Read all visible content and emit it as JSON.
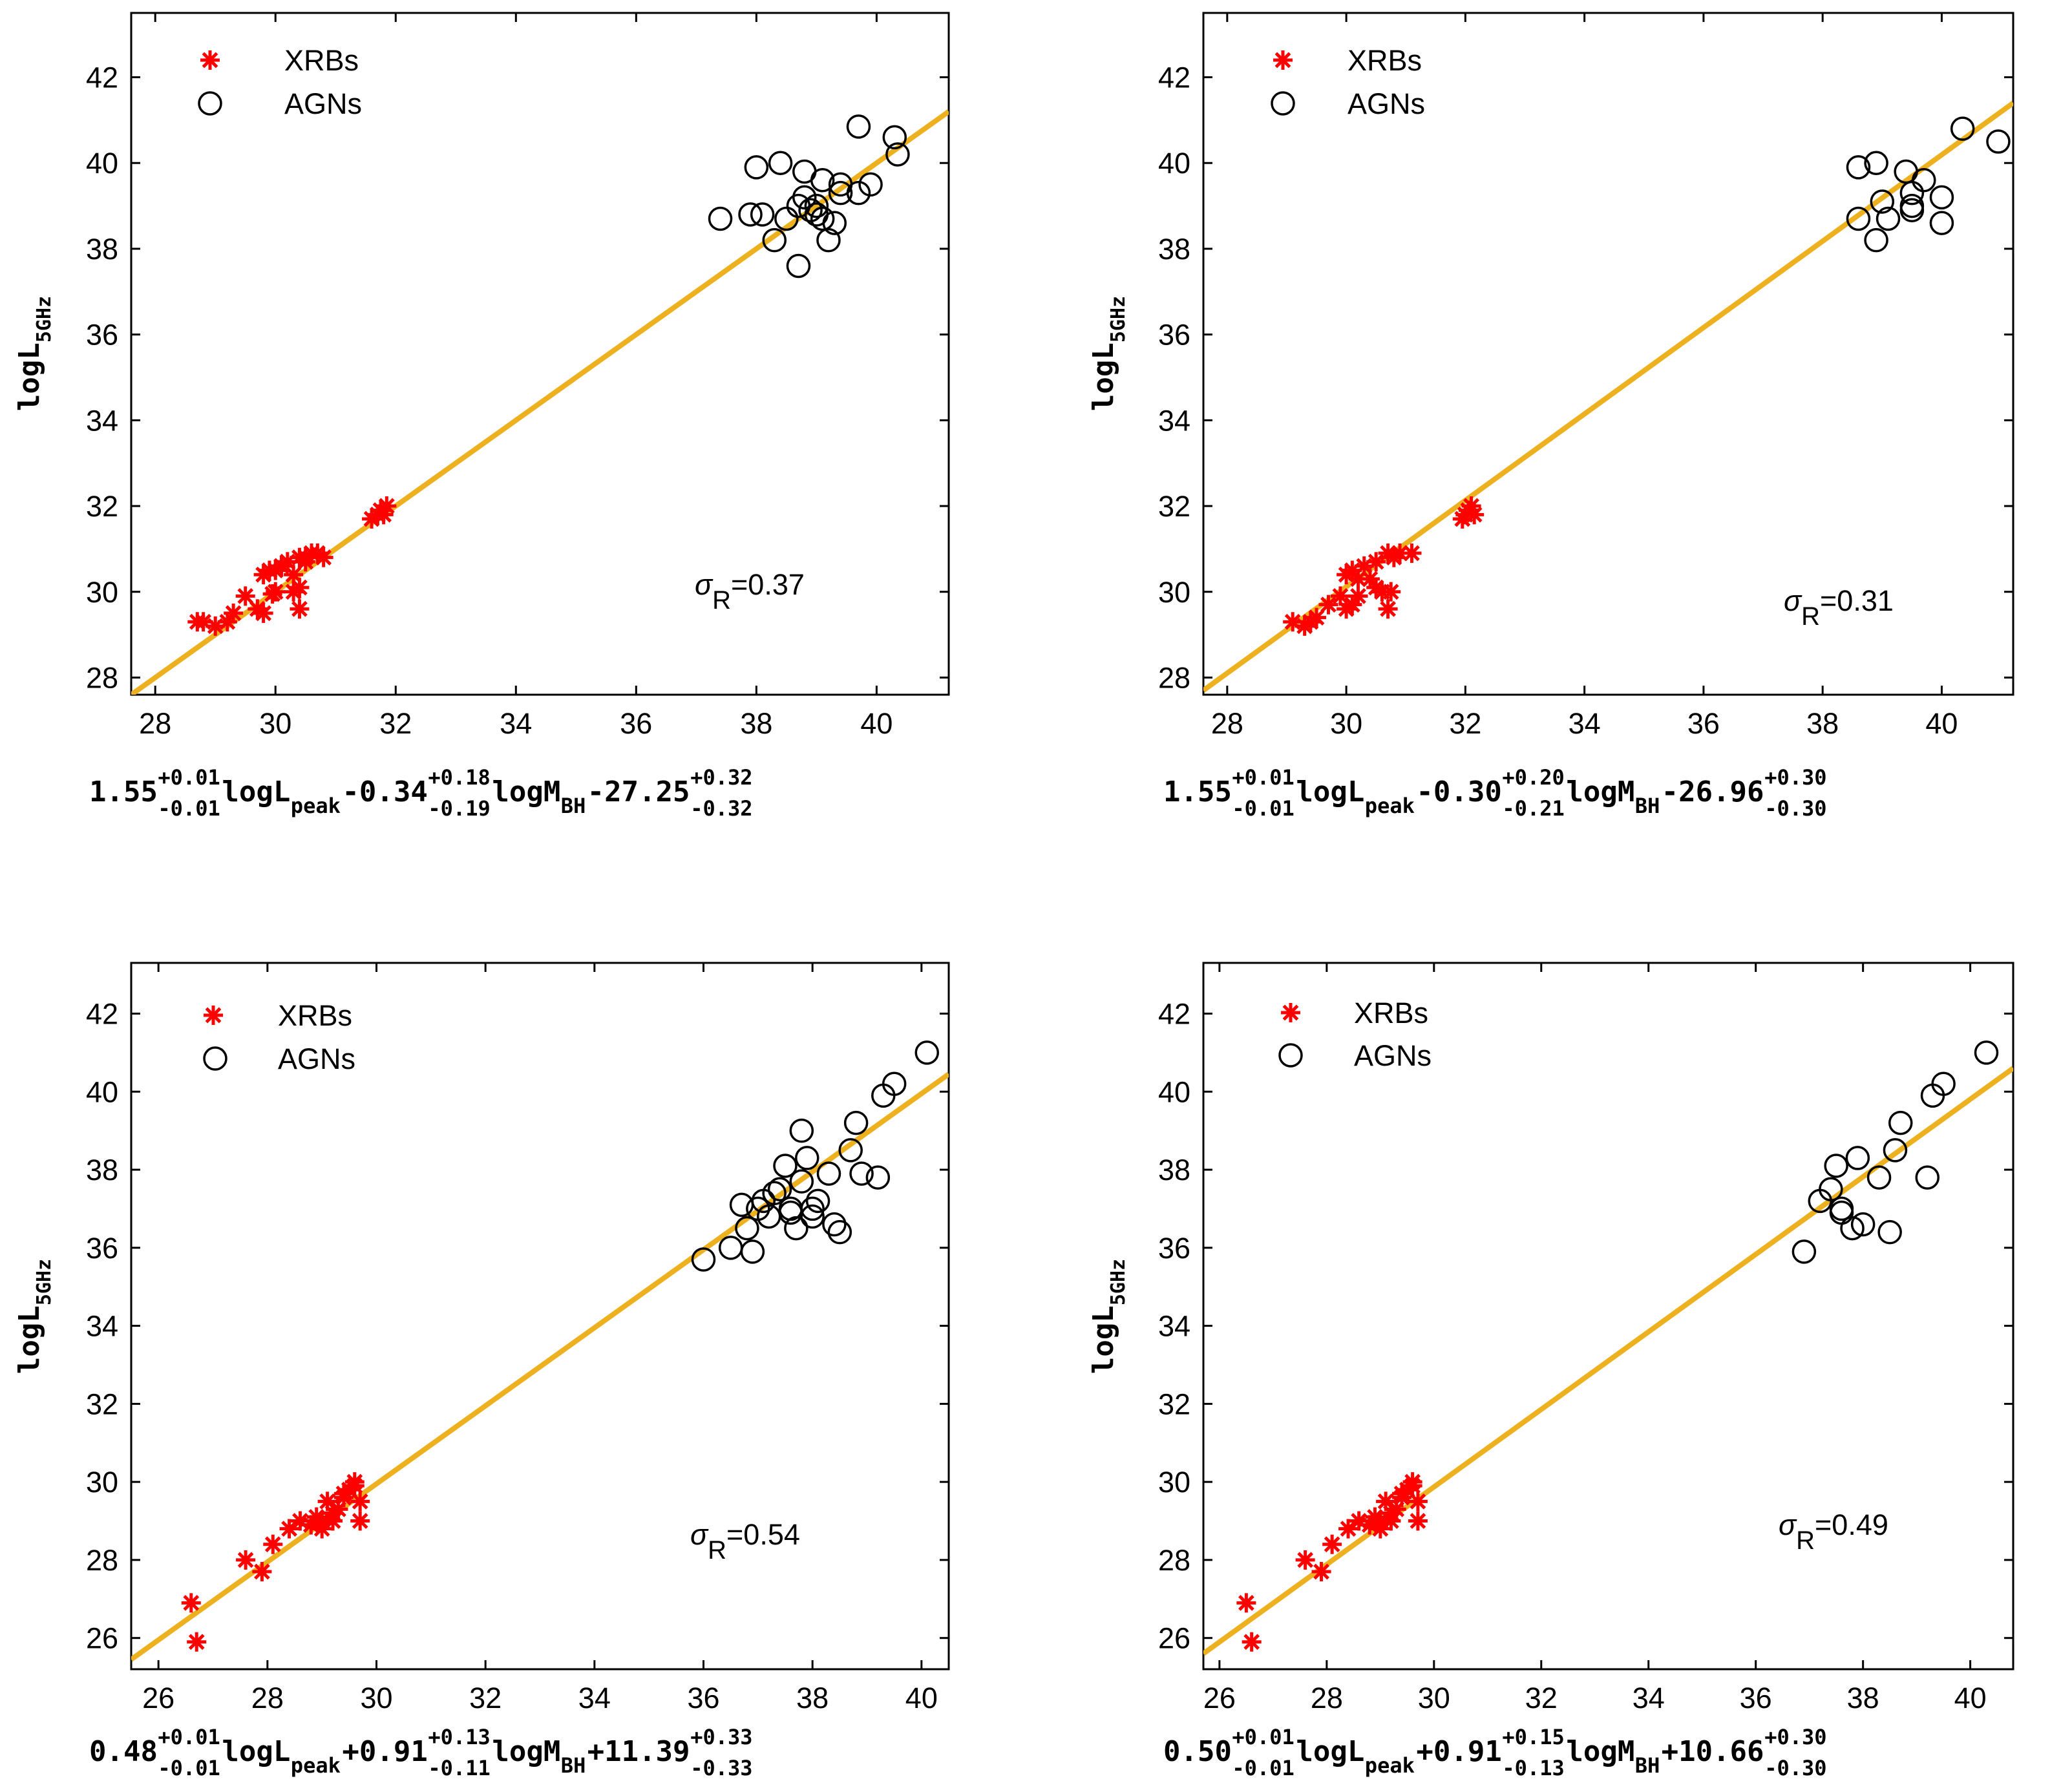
{
  "figure": {
    "panels": [
      {
        "legend": {
          "xrb": "XRBs",
          "agn": "AGNs"
        },
        "ylabel": {
          "main": "logL",
          "sub": "5GHz"
        },
        "sigma": {
          "symbol": "σ",
          "sub": "R",
          "value": "=0.37"
        },
        "xlabel": {
          "a": "1.55",
          "a_sup": "+0.01",
          "a_sub": "-0.01",
          "t1": "logL",
          "t1_sub": "peak",
          "b": "-0.34",
          "b_sup": "+0.18",
          "b_sub": "-0.19",
          "t2": "logM",
          "t2_sub": "BH",
          "c": "-27.25",
          "c_sup": "+0.32",
          "c_sub": "-0.32"
        }
      },
      {
        "legend": {
          "xrb": "XRBs",
          "agn": "AGNs"
        },
        "ylabel": {
          "main": "logL",
          "sub": "5GHz"
        },
        "sigma": {
          "symbol": "σ",
          "sub": "R",
          "value": "=0.31"
        },
        "xlabel": {
          "a": "1.55",
          "a_sup": "+0.01",
          "a_sub": "-0.01",
          "t1": "logL",
          "t1_sub": "peak",
          "b": "-0.30",
          "b_sup": "+0.20",
          "b_sub": "-0.21",
          "t2": "logM",
          "t2_sub": "BH",
          "c": "-26.96",
          "c_sup": "+0.30",
          "c_sub": "-0.30"
        }
      },
      {
        "legend": {
          "xrb": "XRBs",
          "agn": "AGNs"
        },
        "ylabel": {
          "main": "logL",
          "sub": "5GHz"
        },
        "sigma": {
          "symbol": "σ",
          "sub": "R",
          "value": "=0.54"
        },
        "xlabel": {
          "a": "0.48",
          "a_sup": "+0.01",
          "a_sub": "-0.01",
          "t1": "logL",
          "t1_sub": "peak",
          "b": "+0.91",
          "b_sup": "+0.13",
          "b_sub": "-0.11",
          "t2": "logM",
          "t2_sub": "BH",
          "c": "+11.39",
          "c_sup": "+0.33",
          "c_sub": "-0.33"
        }
      },
      {
        "legend": {
          "xrb": "XRBs",
          "agn": "AGNs"
        },
        "ylabel": {
          "main": "logL",
          "sub": "5GHz"
        },
        "sigma": {
          "symbol": "σ",
          "sub": "R",
          "value": "=0.49"
        },
        "xlabel": {
          "a": "0.50",
          "a_sup": "+0.01",
          "a_sub": "-0.01",
          "t1": "logL",
          "t1_sub": "peak",
          "b": "+0.91",
          "b_sup": "+0.15",
          "b_sub": "-0.13",
          "t2": "logM",
          "t2_sub": "BH",
          "c": "+10.66",
          "c_sup": "+0.30",
          "c_sub": "-0.30"
        }
      }
    ]
  },
  "colors": {
    "xrb": "#ff0000",
    "agn": "#000000",
    "fit": "#edb120",
    "axis": "#000000"
  },
  "chart_data": [
    {
      "type": "scatter",
      "xlim": [
        27.6,
        41.2
      ],
      "ylim": [
        27.6,
        43.5
      ],
      "xticks": [
        28,
        30,
        32,
        34,
        36,
        38,
        40
      ],
      "yticks": [
        28,
        30,
        32,
        34,
        36,
        38,
        40,
        42
      ],
      "fit_line": [
        [
          27.6,
          27.6
        ],
        [
          41.2,
          41.2
        ]
      ],
      "series": [
        {
          "name": "XRBs",
          "marker": "asterisk",
          "x": [
            28.7,
            28.8,
            29.0,
            29.2,
            29.3,
            29.5,
            29.7,
            29.8,
            29.8,
            29.9,
            30.0,
            30.1,
            30.2,
            30.3,
            30.4,
            30.4,
            30.5,
            30.5,
            30.6,
            30.7,
            30.8,
            31.6,
            31.7,
            31.75,
            31.8,
            31.85,
            30.0,
            30.1,
            30.3,
            30.4,
            29.95
          ],
          "y": [
            29.3,
            29.3,
            29.2,
            29.3,
            29.5,
            29.9,
            29.6,
            30.4,
            29.5,
            30.5,
            30.0,
            30.6,
            30.7,
            30.0,
            29.6,
            30.1,
            30.8,
            30.7,
            30.9,
            30.9,
            30.8,
            31.7,
            31.8,
            31.9,
            31.8,
            32.0,
            30.5,
            30.6,
            30.4,
            30.8,
            29.95
          ]
        },
        {
          "name": "AGNs",
          "marker": "circle",
          "x": [
            37.4,
            37.9,
            38.0,
            38.1,
            38.3,
            38.4,
            38.5,
            38.7,
            38.7,
            38.8,
            38.8,
            38.9,
            39.0,
            39.0,
            39.1,
            39.1,
            39.2,
            39.3,
            39.4,
            39.4,
            39.7,
            39.7,
            39.9,
            40.3,
            40.35
          ],
          "y": [
            38.7,
            38.8,
            39.9,
            38.8,
            38.2,
            40.0,
            38.7,
            39.0,
            37.6,
            39.8,
            39.2,
            38.9,
            38.8,
            39.0,
            39.6,
            38.7,
            38.2,
            38.6,
            39.3,
            39.5,
            40.85,
            39.3,
            39.5,
            40.6,
            40.2
          ]
        }
      ]
    },
    {
      "type": "scatter",
      "xlim": [
        27.6,
        41.2
      ],
      "ylim": [
        27.6,
        43.5
      ],
      "xticks": [
        28,
        30,
        32,
        34,
        36,
        38,
        40
      ],
      "yticks": [
        28,
        30,
        32,
        34,
        36,
        38,
        40,
        42
      ],
      "fit_line": [
        [
          27.6,
          27.7
        ],
        [
          41.2,
          41.4
        ]
      ],
      "series": [
        {
          "name": "XRBs",
          "marker": "asterisk",
          "x": [
            29.1,
            29.3,
            29.4,
            29.5,
            29.7,
            29.9,
            30.0,
            30.1,
            30.2,
            30.3,
            30.4,
            30.5,
            30.6,
            30.7,
            30.8,
            30.9,
            31.1,
            31.95,
            32.0,
            32.05,
            32.1,
            32.15,
            30.0,
            30.2,
            30.5,
            30.7,
            30.75,
            30.1
          ],
          "y": [
            29.3,
            29.2,
            29.3,
            29.4,
            29.7,
            29.9,
            30.4,
            30.5,
            29.9,
            30.6,
            30.3,
            30.7,
            30.0,
            30.9,
            30.8,
            30.9,
            30.9,
            31.7,
            31.8,
            31.9,
            32.0,
            31.8,
            29.6,
            30.3,
            30.1,
            29.6,
            30.0,
            29.7
          ]
        },
        {
          "name": "AGNs",
          "marker": "circle",
          "x": [
            38.6,
            38.6,
            38.9,
            38.9,
            39.0,
            39.1,
            39.4,
            39.5,
            39.5,
            39.5,
            39.7,
            40.0,
            40.0,
            40.35,
            40.95
          ],
          "y": [
            39.9,
            38.7,
            38.2,
            40.0,
            39.1,
            38.7,
            39.8,
            39.0,
            38.9,
            39.3,
            39.6,
            39.2,
            38.6,
            40.8,
            40.5
          ]
        }
      ]
    },
    {
      "type": "scatter",
      "xlim": [
        25.5,
        40.5
      ],
      "ylim": [
        25.2,
        43.3
      ],
      "xticks": [
        26,
        28,
        30,
        32,
        34,
        36,
        38,
        40
      ],
      "yticks": [
        26,
        28,
        30,
        32,
        34,
        36,
        38,
        40,
        42
      ],
      "fit_line": [
        [
          25.5,
          25.45
        ],
        [
          40.5,
          40.45
        ]
      ],
      "series": [
        {
          "name": "XRBs",
          "marker": "asterisk",
          "x": [
            26.6,
            26.7,
            27.6,
            27.9,
            28.1,
            28.4,
            28.6,
            28.8,
            29.0,
            29.1,
            29.2,
            29.3,
            29.4,
            29.5,
            29.6,
            29.7,
            29.7,
            29.0,
            29.2,
            29.4,
            29.6,
            28.9
          ],
          "y": [
            26.9,
            25.9,
            28.0,
            27.7,
            28.4,
            28.8,
            29.0,
            28.9,
            29.0,
            29.5,
            29.0,
            29.3,
            29.6,
            29.8,
            30.0,
            29.5,
            29.0,
            28.8,
            29.2,
            29.7,
            29.9,
            29.1
          ]
        },
        {
          "name": "AGNs",
          "marker": "circle",
          "x": [
            36.0,
            36.5,
            36.7,
            36.8,
            36.9,
            37.0,
            37.2,
            37.3,
            37.4,
            37.5,
            37.6,
            37.7,
            37.8,
            37.8,
            37.9,
            38.0,
            38.0,
            38.1,
            38.3,
            38.4,
            38.5,
            38.7,
            38.8,
            38.9,
            39.2,
            39.3,
            39.5,
            40.1,
            37.1,
            37.6
          ],
          "y": [
            35.7,
            36.0,
            37.1,
            36.5,
            35.9,
            37.0,
            36.8,
            37.4,
            37.5,
            38.1,
            37.0,
            36.5,
            39.0,
            37.7,
            38.3,
            37.0,
            36.8,
            37.2,
            37.9,
            36.6,
            36.4,
            38.5,
            39.2,
            37.9,
            37.8,
            39.9,
            40.2,
            41.0,
            37.2,
            36.9
          ]
        }
      ]
    },
    {
      "type": "scatter",
      "xlim": [
        25.7,
        40.8
      ],
      "ylim": [
        25.2,
        43.3
      ],
      "xticks": [
        26,
        28,
        30,
        32,
        34,
        36,
        38,
        40
      ],
      "yticks": [
        26,
        28,
        30,
        32,
        34,
        36,
        38,
        40,
        42
      ],
      "fit_line": [
        [
          25.7,
          25.6
        ],
        [
          40.8,
          40.6
        ]
      ],
      "series": [
        {
          "name": "XRBs",
          "marker": "asterisk",
          "x": [
            26.5,
            26.6,
            27.6,
            27.9,
            28.1,
            28.4,
            28.6,
            28.8,
            29.0,
            29.1,
            29.2,
            29.3,
            29.4,
            29.5,
            29.6,
            29.7,
            29.7,
            29.0,
            29.2,
            29.4,
            29.6,
            28.9
          ],
          "y": [
            26.9,
            25.9,
            28.0,
            27.7,
            28.4,
            28.8,
            29.0,
            28.9,
            29.0,
            29.5,
            29.0,
            29.3,
            29.6,
            29.8,
            30.0,
            29.5,
            29.0,
            28.8,
            29.2,
            29.7,
            29.9,
            29.1
          ]
        },
        {
          "name": "AGNs",
          "marker": "circle",
          "x": [
            36.9,
            37.2,
            37.4,
            37.5,
            37.6,
            37.8,
            37.9,
            38.0,
            38.3,
            38.5,
            38.6,
            38.7,
            39.2,
            39.3,
            39.5,
            40.3,
            37.6
          ],
          "y": [
            35.9,
            37.2,
            37.5,
            38.1,
            36.9,
            36.5,
            38.3,
            36.6,
            37.8,
            36.4,
            38.5,
            39.2,
            37.8,
            39.9,
            40.2,
            41.0,
            37.0
          ]
        }
      ]
    }
  ]
}
